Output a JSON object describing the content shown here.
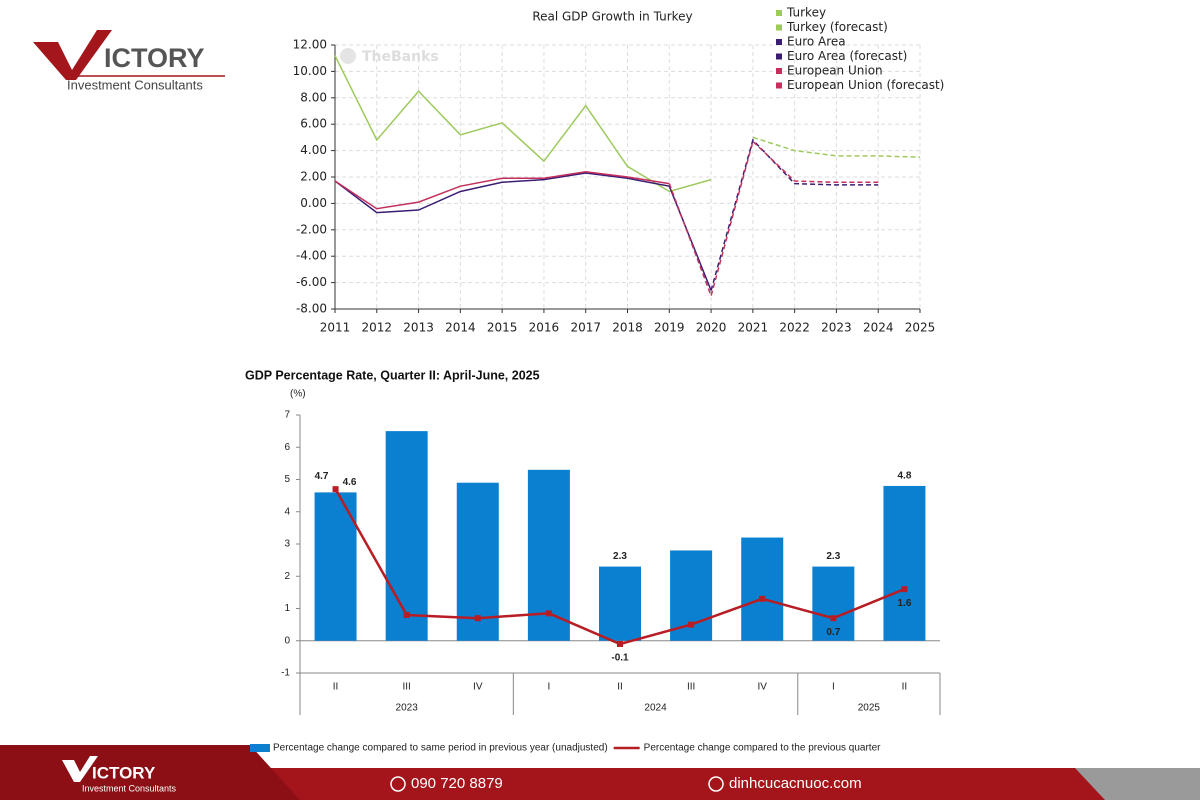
{
  "branding": {
    "logo_text": "ICTORY",
    "tagline": "Investment Consultants"
  },
  "footer": {
    "phone": "090 720 8879",
    "website": "dinhcucacnuoc.com"
  },
  "chart_data": [
    {
      "type": "line",
      "title": "Real GDP Growth in Turkey",
      "watermark": "TheBanks",
      "x": [
        2011,
        2012,
        2013,
        2014,
        2015,
        2016,
        2017,
        2018,
        2019,
        2020,
        2021,
        2022,
        2023,
        2024,
        2025
      ],
      "xlim": [
        2011,
        2025
      ],
      "xticks": [
        2011,
        2012,
        2013,
        2014,
        2015,
        2016,
        2017,
        2018,
        2019,
        2020,
        2021,
        2022,
        2023,
        2024,
        2025
      ],
      "ylim": [
        -8,
        12
      ],
      "yticks": [
        {
          "value": -8,
          "label": "-8.00"
        },
        {
          "value": -6,
          "label": "-6.00"
        },
        {
          "value": -4,
          "label": "-4.00"
        },
        {
          "value": -2,
          "label": "-2.00"
        },
        {
          "value": 0,
          "label": "0.00"
        },
        {
          "value": 2,
          "label": "2.00"
        },
        {
          "value": 4,
          "label": "4.00"
        },
        {
          "value": 6,
          "label": "6.00"
        },
        {
          "value": 8,
          "label": "8.00"
        },
        {
          "value": 10,
          "label": "10.00"
        },
        {
          "value": 12,
          "label": "12.00"
        }
      ],
      "grid": true,
      "legend": "top-right",
      "series": [
        {
          "name": "Turkey",
          "color": "#9dc95e",
          "dashed": false,
          "values": [
            11.2,
            4.8,
            8.5,
            5.2,
            6.1,
            3.2,
            7.4,
            2.8,
            0.9,
            1.8,
            null,
            null,
            null,
            null,
            null
          ]
        },
        {
          "name": "Turkey (forecast)",
          "color": "#9dc95e",
          "dashed": true,
          "values": [
            null,
            null,
            null,
            null,
            null,
            null,
            null,
            null,
            null,
            null,
            5.0,
            4.0,
            3.6,
            3.6,
            3.5
          ]
        },
        {
          "name": "Euro Area",
          "color": "#3b1d73",
          "dashed": false,
          "values": [
            1.7,
            -0.7,
            -0.5,
            0.9,
            1.6,
            1.8,
            2.3,
            1.9,
            1.3,
            -6.6,
            null,
            null,
            null,
            null,
            null
          ]
        },
        {
          "name": "Euro Area (forecast)",
          "color": "#3b1d73",
          "dashed": true,
          "values": [
            null,
            null,
            null,
            null,
            null,
            null,
            null,
            null,
            null,
            -6.6,
            4.8,
            1.5,
            1.4,
            1.4,
            null
          ]
        },
        {
          "name": "European Union",
          "color": "#c3305c",
          "dashed": false,
          "values": [
            1.7,
            -0.4,
            0.1,
            1.3,
            1.9,
            1.9,
            2.4,
            2.0,
            1.5,
            null,
            null,
            null,
            null,
            null,
            null
          ]
        },
        {
          "name": "European Union (forecast)",
          "color": "#c3305c",
          "dashed": true,
          "values": [
            null,
            null,
            null,
            null,
            null,
            null,
            null,
            null,
            1.5,
            -7.0,
            4.7,
            1.7,
            1.6,
            1.6,
            null
          ]
        }
      ]
    },
    {
      "type": "bar",
      "title": "GDP Percentage Rate, Quarter II: April-June, 2025",
      "y_label": "(%)",
      "categories": [
        "II",
        "III",
        "IV",
        "I",
        "II",
        "III",
        "IV",
        "I",
        "II"
      ],
      "groups": [
        {
          "label": "2023",
          "span": 3
        },
        {
          "label": "2024",
          "span": 4
        },
        {
          "label": "2025",
          "span": 2
        }
      ],
      "ylim": [
        -1,
        7
      ],
      "yticks": [
        -1,
        0,
        1,
        2,
        3,
        4,
        5,
        6,
        7
      ],
      "grid": false,
      "legend": "bottom",
      "series": [
        {
          "name": "Percentage change compared to same period in previous year (unadjusted)",
          "type": "bar",
          "color": "#0b7fd0",
          "values": [
            4.6,
            6.5,
            4.9,
            5.3,
            2.3,
            2.8,
            3.2,
            2.3,
            4.8
          ],
          "value_labels": [
            "4.6",
            null,
            null,
            null,
            "2.3",
            null,
            null,
            "2.3",
            "4.8"
          ]
        },
        {
          "name": "Percentage change compared to the previous quarter",
          "type": "line",
          "color": "#b81d24",
          "values": [
            4.7,
            0.8,
            0.7,
            0.85,
            -0.1,
            0.5,
            1.3,
            0.7,
            1.6
          ],
          "value_labels": [
            "4.7",
            null,
            null,
            null,
            "-0.1",
            null,
            null,
            "0.7",
            "1.6"
          ]
        }
      ]
    }
  ]
}
